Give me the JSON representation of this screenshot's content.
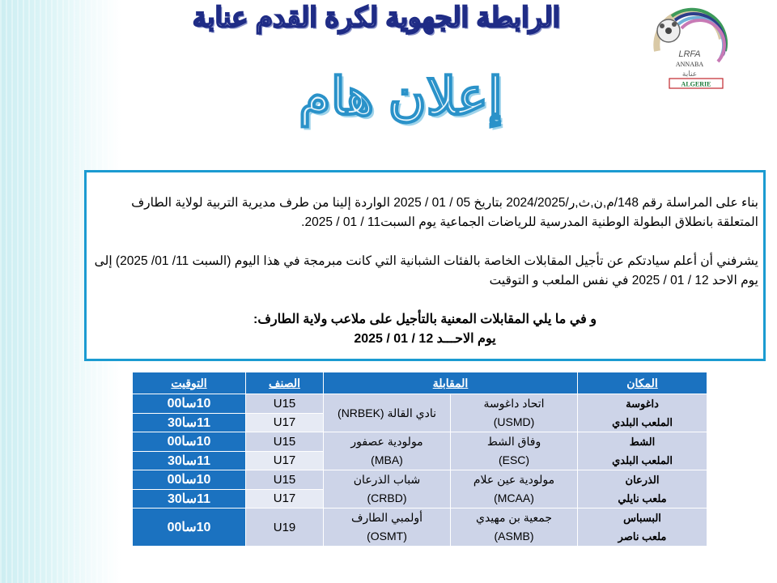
{
  "header": {
    "title": "الرابطة الجهوية لكرة القدم عنابة",
    "subtitle": "إعلان هام",
    "logo": {
      "text": "LRFA",
      "city": "ANNABA",
      "arabic": "عنابة",
      "badge": "ALGERIE"
    }
  },
  "notice": {
    "paragraph1": "بناء على المراسلة رقم 148/م,ن,ث,ر/2024/2025  بتاريخ 05 / 01 / 2025 الواردة إلينا من طرف مديرية التربية لولاية الطارف المتعلقة بانطلاق البطولة الوطنية المدرسية للرياضات الجماعية يوم السبت11  / 01 / 2025.",
    "paragraph2": "يشرفني أن أعلم سيادتكم عن تأجيل المقابلات الخاصة بالفئات الشبانية التي كانت مبرمجة في هذا اليوم (السبت 11/ 01/ 2025) إلى يوم الاحد 12 / 01 / 2025  في نفس الملعب و التوقيت",
    "intro": "و في ما يلي المقابلات المعنية بالتأجيل على ملاعب ولاية الطارف:",
    "day": "يوم الاحـــد     12 / 01 / 2025"
  },
  "table": {
    "headers": {
      "place": "المكان",
      "match": "المقابلة",
      "class": "الصنف",
      "time": "التوقيت"
    },
    "groups": [
      {
        "place": [
          "داغوسة",
          "الملعب البلدي"
        ],
        "home": [
          "اتحاد داغوسة",
          "(USMD)"
        ],
        "away": [
          "نادي القالة (NRBEK)"
        ],
        "rows": [
          {
            "class": "U15",
            "time": "10سا00"
          },
          {
            "class": "U17",
            "time": "11سا30"
          }
        ]
      },
      {
        "place": [
          "الشط",
          "الملعب البلدي"
        ],
        "home": [
          "وفاق الشط",
          "(ESC)"
        ],
        "away": [
          "مولودية عصفور",
          "(MBA)"
        ],
        "rows": [
          {
            "class": "U15",
            "time": "10سا00"
          },
          {
            "class": "U17",
            "time": "11سا30"
          }
        ]
      },
      {
        "place": [
          "الذرعان",
          "ملعب نايلي"
        ],
        "home": [
          "مولودية عين علام",
          "(MCAA)"
        ],
        "away": [
          "شباب الذرعان",
          "(CRBD)"
        ],
        "rows": [
          {
            "class": "U15",
            "time": "10سا00"
          },
          {
            "class": "U17",
            "time": "11سا30"
          }
        ]
      },
      {
        "place": [
          "البسباس",
          "ملعب ناصر"
        ],
        "home": [
          "جمعية بن مهيدي",
          "(ASMB)"
        ],
        "away": [
          "أولمبي الطارف",
          "(OSMT)"
        ],
        "rows": [
          {
            "class": "U19",
            "time": "10سا00"
          }
        ]
      }
    ]
  }
}
